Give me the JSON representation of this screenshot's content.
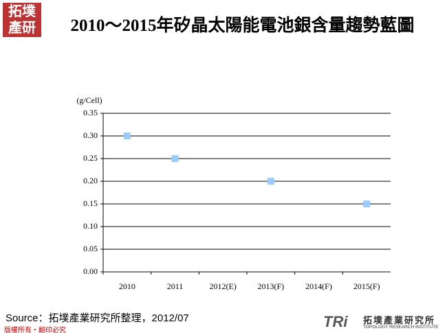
{
  "logo": {
    "lines": [
      "拓墣",
      "產研"
    ]
  },
  "chart_data": {
    "type": "scatter",
    "title": "2010～2015年矽晶太陽能電池銀含量趨勢藍圖",
    "y_label": "(g/Cell)",
    "categories": [
      "2010",
      "2011",
      "2012(E)",
      "2013(F)",
      "2014(F)",
      "2015(F)"
    ],
    "values": [
      0.3,
      0.25,
      null,
      0.2,
      null,
      0.15
    ],
    "color": "#99ccff",
    "ylim": [
      0,
      0.35
    ],
    "yticks": [
      {
        "value": 0,
        "label": "0.00"
      },
      0.05,
      {
        "value": 0.1,
        "label": "0.10"
      },
      0.15,
      {
        "value": 0.2,
        "label": "0.20"
      },
      0.25,
      {
        "value": 0.3,
        "label": "0.30"
      },
      0.35
    ],
    "grid": true
  },
  "footer": {
    "source": "Source：拓墣產業研究所整理，2012/07",
    "copyright": "版權所有‧翻印必究",
    "brand_mark": "TRi",
    "brand_name": "拓墣產業研究所",
    "brand_english": "TOPOLOGY RESEARCH INSTITUTE"
  }
}
